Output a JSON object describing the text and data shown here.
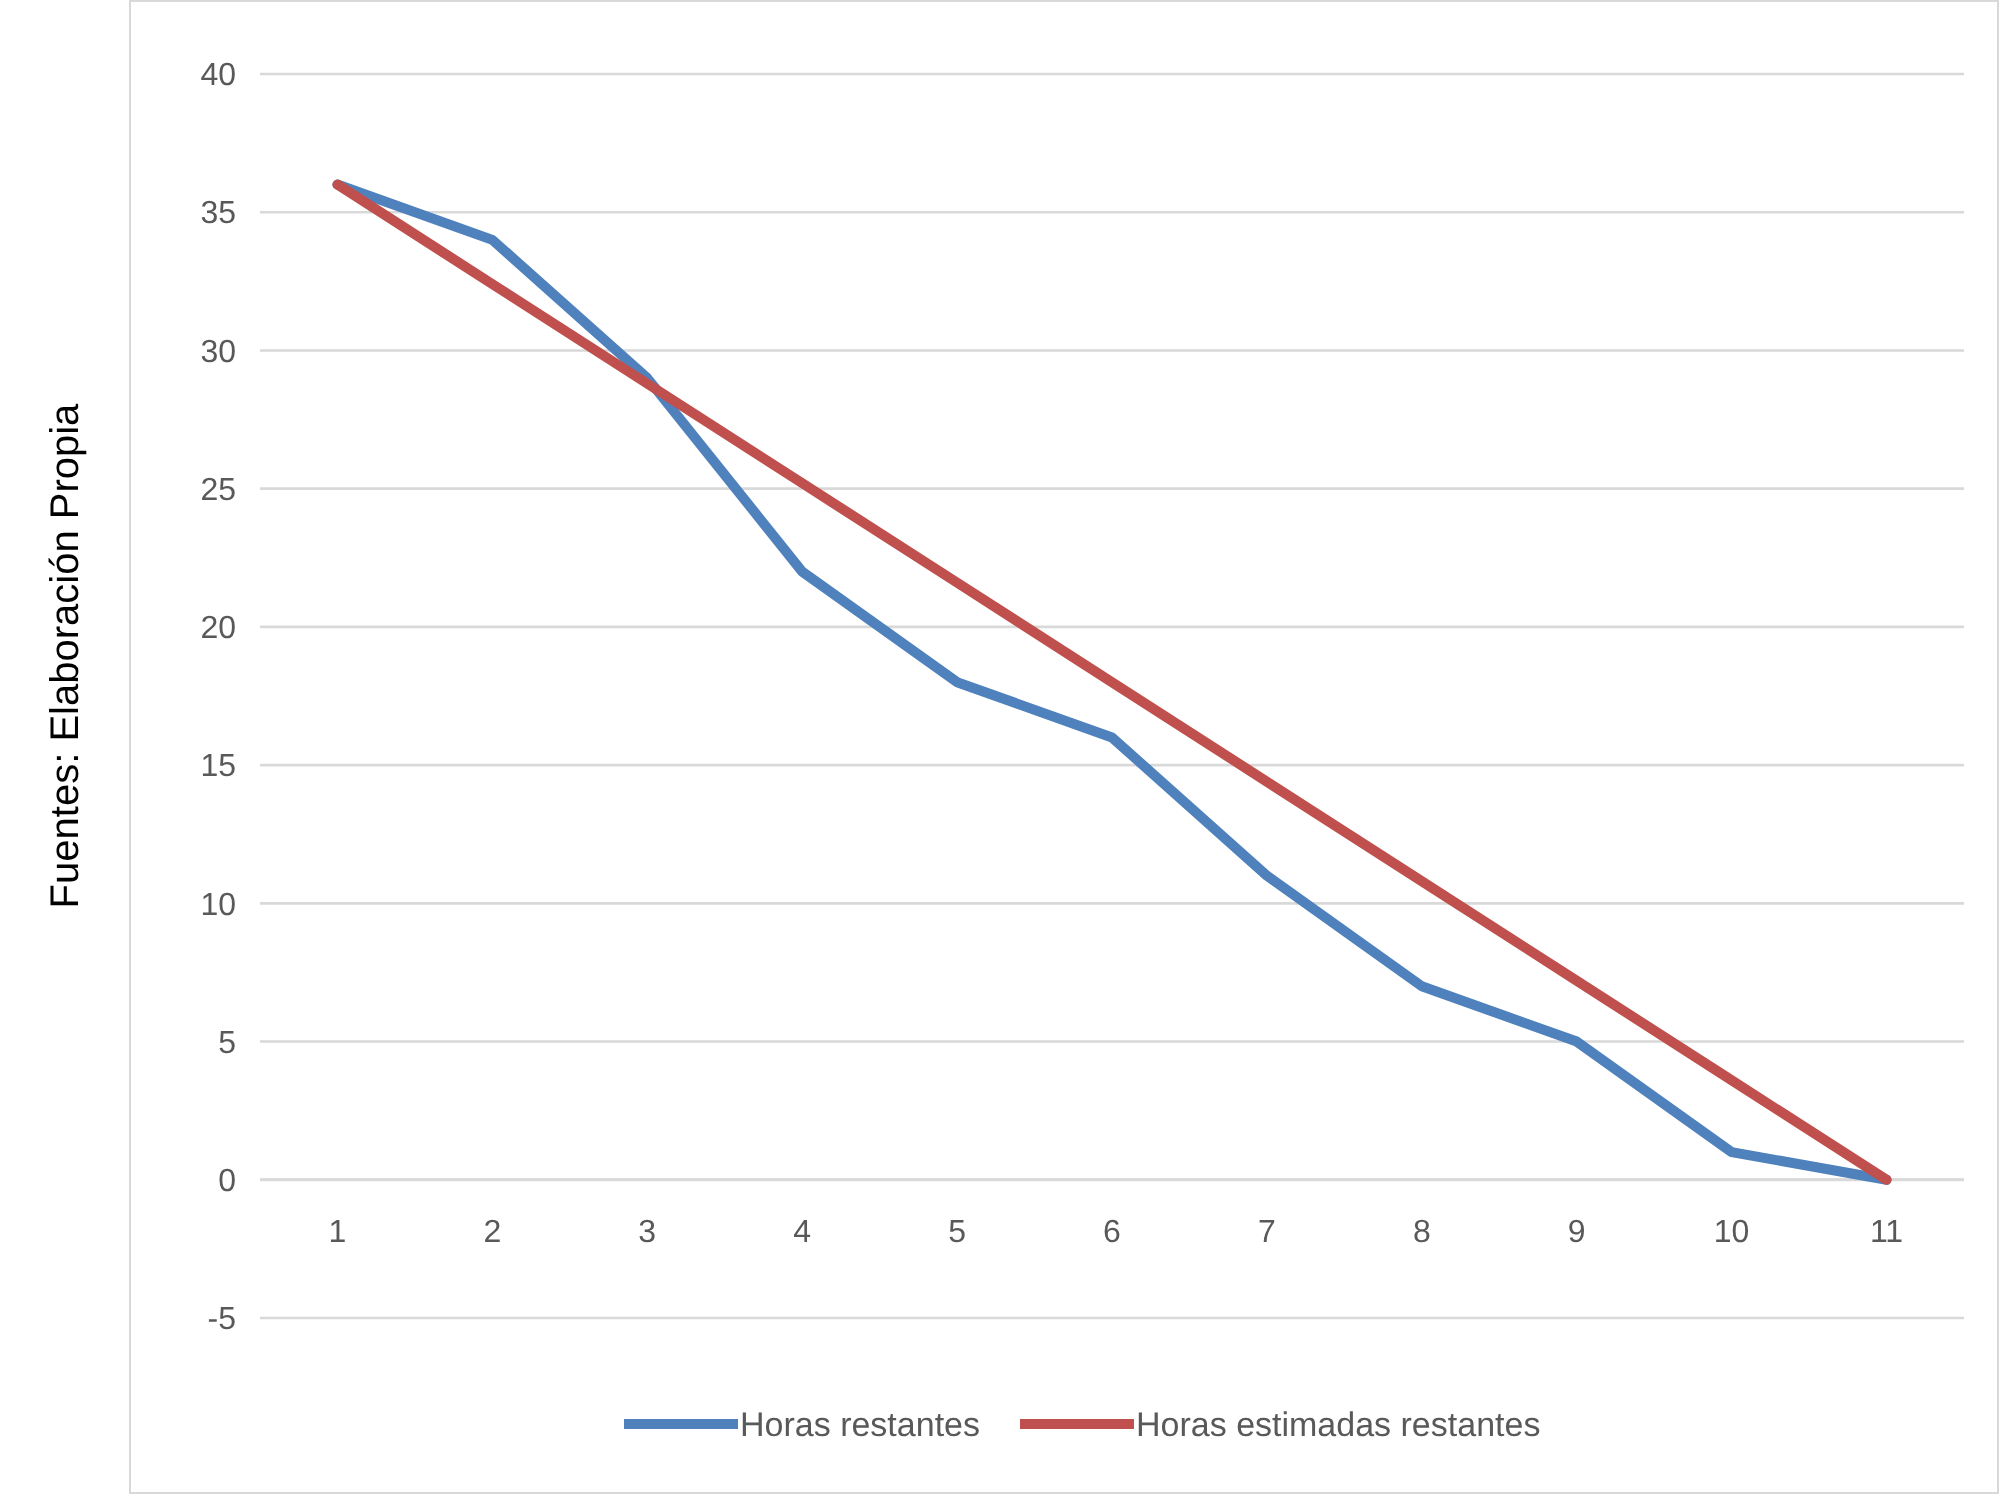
{
  "chart_data": {
    "type": "line",
    "ylabel": "Fuentes: Elaboración Propia",
    "categories": [
      "1",
      "2",
      "3",
      "4",
      "5",
      "6",
      "7",
      "8",
      "9",
      "10",
      "11"
    ],
    "series": [
      {
        "name": "Horas restantes",
        "color": "#4f81bd",
        "values": [
          36,
          34,
          29,
          22,
          18,
          16,
          11,
          7,
          5,
          1,
          0
        ]
      },
      {
        "name": "Horas estimadas restantes",
        "color": "#c0504d",
        "values": [
          36,
          32.4,
          28.8,
          25.2,
          21.6,
          18,
          14.4,
          10.8,
          7.2,
          3.6,
          0
        ]
      }
    ],
    "ylim": [
      -5,
      40
    ],
    "yticks": [
      -5,
      0,
      5,
      10,
      15,
      20,
      25,
      30,
      35,
      40
    ],
    "grid": "y",
    "legend": "bottom",
    "marker": "none",
    "line_style": "solid"
  }
}
